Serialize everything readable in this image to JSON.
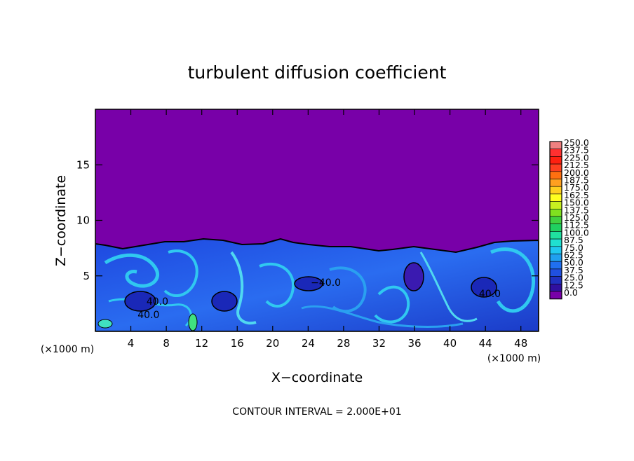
{
  "chart_data": {
    "type": "heatmap",
    "title": "turbulent diffusion coefficient",
    "xlabel": "X−coordinate",
    "ylabel": "Z−coordinate",
    "x_unit_left": "(×1000 m)",
    "x_unit_right": "(×1000 m)",
    "xlim": [
      0,
      50
    ],
    "ylim": [
      0,
      20
    ],
    "x_ticks": [
      4,
      8,
      12,
      16,
      20,
      24,
      28,
      32,
      36,
      40,
      44,
      48
    ],
    "y_ticks": [
      5,
      10,
      15
    ],
    "contour_labels": [
      {
        "text": "40.0",
        "x": 7.0,
        "y": 2.4
      },
      {
        "text": "40.0",
        "x": 6.0,
        "y": 1.2
      },
      {
        "text": "−40.0",
        "x": 26.0,
        "y": 4.1
      },
      {
        "text": "40.0",
        "x": 44.5,
        "y": 3.1
      }
    ],
    "footer": "CONTOUR INTERVAL = 2.000E+01",
    "colorbar": {
      "labels": [
        "250.0",
        "237.5",
        "225.0",
        "212.5",
        "200.0",
        "187.5",
        "175.0",
        "162.5",
        "150.0",
        "137.5",
        "125.0",
        "112.5",
        "100.0",
        "87.5",
        "75.0",
        "62.5",
        "50.0",
        "37.5",
        "25.0",
        "12.5",
        "0.0"
      ],
      "colors": [
        "#f08080",
        "#ff3030",
        "#ff2010",
        "#ff4020",
        "#ff7010",
        "#ffa020",
        "#ffd020",
        "#ffff20",
        "#c8f020",
        "#80e020",
        "#40d040",
        "#20d060",
        "#20e0a0",
        "#20e0d0",
        "#20c8f0",
        "#20a0f0",
        "#2070f0",
        "#2050e0",
        "#2030c0",
        "#3010a0",
        "#7800a8"
      ]
    },
    "colors": {
      "background": "#7800a8",
      "turbulent_layer_top_km": 8.0
    }
  }
}
